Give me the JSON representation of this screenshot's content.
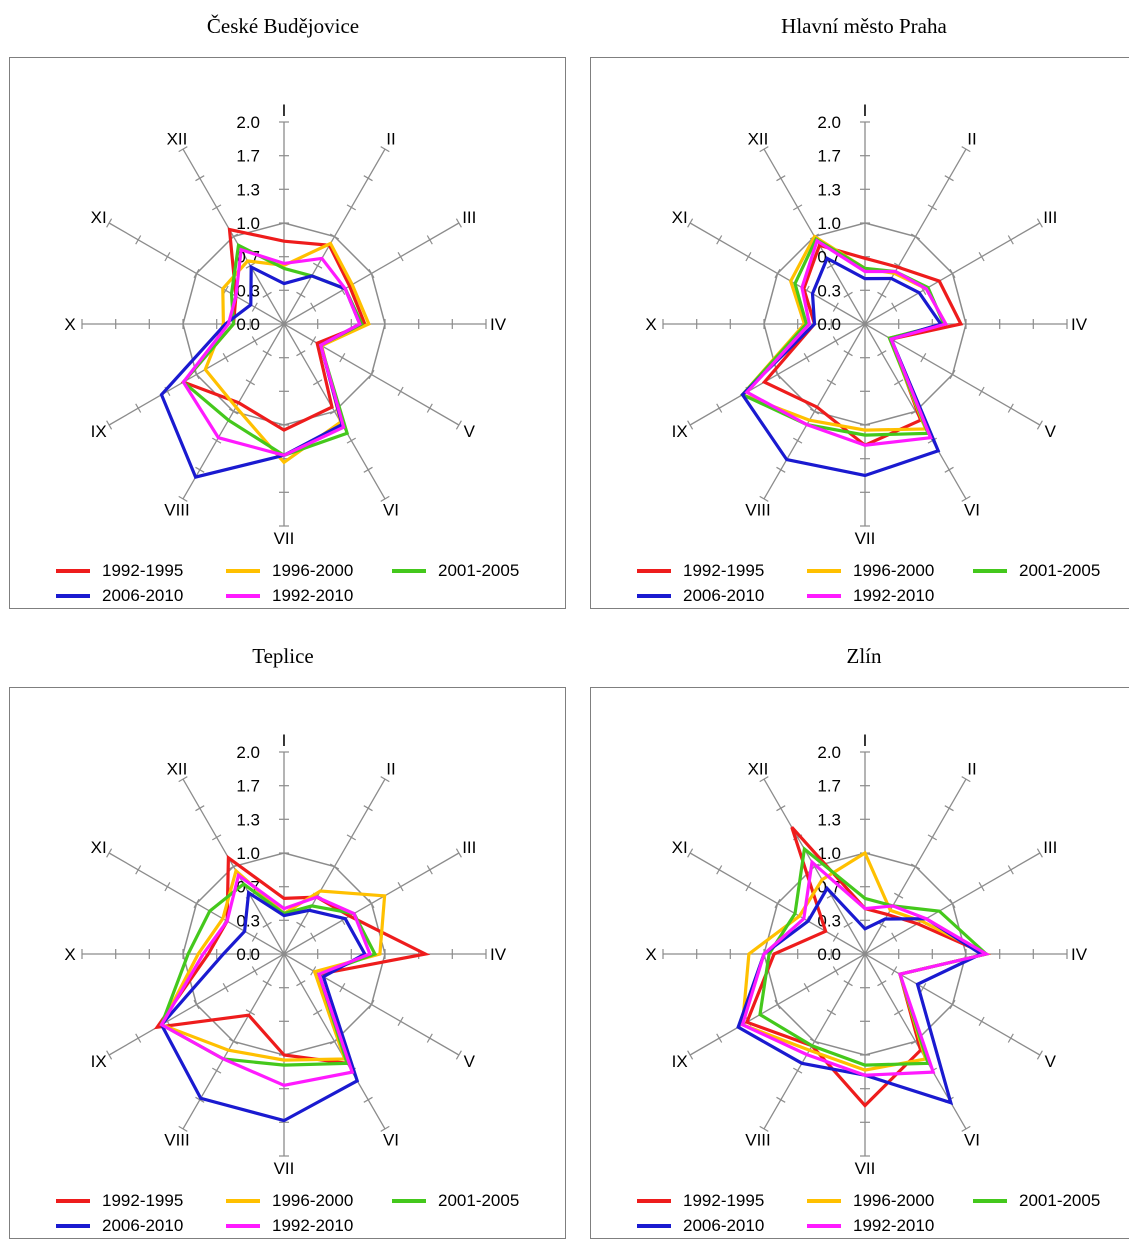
{
  "colors": {
    "1992-1995": "#ee1c1c",
    "1996-2000": "#ffc000",
    "2001-2005": "#44c81c",
    "2006-2010": "#1a1ad0",
    "1992-2010": "#ff1aff",
    "grid": "#8c8c8c"
  },
  "chart_data": [
    {
      "type": "radar",
      "title": "České Budějovice",
      "categories": [
        "I",
        "II",
        "III",
        "IV",
        "V",
        "VI",
        "VII",
        "VIII",
        "IX",
        "X",
        "XI",
        "XII"
      ],
      "ticks": [
        "0.0",
        "0.3",
        "0.7",
        "1.0",
        "1.3",
        "1.7",
        "2.0"
      ],
      "rlim": [
        0,
        2.0
      ],
      "legend": "bottom",
      "series": [
        {
          "name": "1992-1995",
          "values": [
            0.82,
            0.9,
            0.75,
            0.8,
            0.38,
            0.95,
            1.05,
            0.9,
            1.15,
            0.5,
            0.55,
            1.08
          ]
        },
        {
          "name": "1996-2000",
          "values": [
            0.58,
            0.92,
            0.78,
            0.84,
            0.43,
            1.12,
            1.37,
            0.95,
            0.9,
            0.6,
            0.7,
            0.72
          ]
        },
        {
          "name": "2001-2005",
          "values": [
            0.55,
            0.55,
            0.7,
            0.77,
            0.42,
            1.25,
            1.3,
            1.1,
            1.15,
            0.5,
            0.6,
            0.9
          ]
        },
        {
          "name": "2006-2010",
          "values": [
            0.4,
            0.55,
            0.7,
            0.75,
            0.42,
            1.15,
            1.3,
            1.75,
            1.4,
            0.58,
            0.38,
            0.65
          ]
        },
        {
          "name": "1992-2010",
          "values": [
            0.6,
            0.75,
            0.7,
            0.75,
            0.42,
            1.18,
            1.3,
            1.3,
            1.15,
            0.55,
            0.55,
            0.85
          ]
        }
      ]
    },
    {
      "type": "radar",
      "title": "Hlavní město Praha",
      "categories": [
        "I",
        "II",
        "III",
        "IV",
        "V",
        "VI",
        "VII",
        "VIII",
        "IX",
        "X",
        "XI",
        "XII"
      ],
      "ticks": [
        "0.0",
        "0.3",
        "0.7",
        "1.0",
        "1.3",
        "1.7",
        "2.0"
      ],
      "rlim": [
        0,
        2.0
      ],
      "legend": "bottom",
      "series": [
        {
          "name": "1992-1995",
          "values": [
            0.65,
            0.65,
            0.85,
            0.95,
            0.3,
            1.1,
            1.2,
            0.95,
            1.15,
            0.5,
            0.7,
            0.9
          ]
        },
        {
          "name": "1996-2000",
          "values": [
            0.55,
            0.58,
            0.7,
            0.8,
            0.28,
            1.2,
            1.05,
            1.1,
            1.4,
            0.6,
            0.85,
            1.0
          ]
        },
        {
          "name": "2001-2005",
          "values": [
            0.55,
            0.6,
            0.72,
            0.78,
            0.28,
            1.25,
            1.1,
            1.15,
            1.4,
            0.58,
            0.8,
            0.97
          ]
        },
        {
          "name": "2006-2010",
          "values": [
            0.45,
            0.52,
            0.62,
            0.75,
            0.3,
            1.45,
            1.5,
            1.55,
            1.4,
            0.5,
            0.6,
            0.75
          ]
        },
        {
          "name": "1992-2010",
          "values": [
            0.52,
            0.6,
            0.7,
            0.8,
            0.3,
            1.3,
            1.2,
            1.15,
            1.35,
            0.55,
            0.72,
            0.95
          ]
        }
      ]
    },
    {
      "type": "radar",
      "title": "Teplice",
      "categories": [
        "I",
        "II",
        "III",
        "IV",
        "V",
        "VI",
        "VII",
        "VIII",
        "IX",
        "X",
        "XI",
        "XII"
      ],
      "ticks": [
        "0.0",
        "0.3",
        "0.7",
        "1.0",
        "1.3",
        "1.7",
        "2.0"
      ],
      "rlim": [
        0,
        2.0
      ],
      "legend": "bottom",
      "series": [
        {
          "name": "1992-1995",
          "values": [
            0.55,
            0.65,
            0.75,
            1.4,
            0.4,
            1.25,
            1.0,
            0.7,
            1.45,
            0.75,
            0.65,
            1.1
          ]
        },
        {
          "name": "1996-2000",
          "values": [
            0.4,
            0.72,
            1.15,
            0.95,
            0.35,
            1.2,
            1.05,
            1.1,
            1.4,
            0.85,
            0.7,
            0.95
          ]
        },
        {
          "name": "2001-2005",
          "values": [
            0.4,
            0.55,
            0.8,
            0.9,
            0.4,
            1.25,
            1.1,
            1.2,
            1.4,
            0.95,
            0.85,
            0.8
          ]
        },
        {
          "name": "2006-2010",
          "values": [
            0.38,
            0.5,
            0.7,
            0.8,
            0.45,
            1.45,
            1.65,
            1.65,
            1.4,
            0.6,
            0.45,
            0.7
          ]
        },
        {
          "name": "1992-2010",
          "values": [
            0.45,
            0.65,
            0.8,
            0.85,
            0.4,
            1.35,
            1.3,
            1.2,
            1.4,
            0.8,
            0.65,
            0.9
          ]
        }
      ]
    },
    {
      "type": "radar",
      "title": "Zlín",
      "categories": [
        "I",
        "II",
        "III",
        "IV",
        "V",
        "VI",
        "VII",
        "VIII",
        "IX",
        "X",
        "XI",
        "XII"
      ],
      "ticks": [
        "0.0",
        "0.3",
        "0.7",
        "1.0",
        "1.3",
        "1.7",
        "2.0"
      ],
      "rlim": [
        0,
        2.0
      ],
      "legend": "bottom",
      "series": [
        {
          "name": "1992-1995",
          "values": [
            0.45,
            0.45,
            0.6,
            1.2,
            0.4,
            1.1,
            1.5,
            1.05,
            1.35,
            0.9,
            0.45,
            1.45
          ]
        },
        {
          "name": "1996-2000",
          "values": [
            1.0,
            0.5,
            0.65,
            1.2,
            0.4,
            1.2,
            1.15,
            1.1,
            1.4,
            1.15,
            0.75,
            0.85
          ]
        },
        {
          "name": "2001-2005",
          "values": [
            0.55,
            0.55,
            0.85,
            1.2,
            0.4,
            1.25,
            1.1,
            1.05,
            1.2,
            0.95,
            0.8,
            1.2
          ]
        },
        {
          "name": "2006-2010",
          "values": [
            0.25,
            0.4,
            0.7,
            1.15,
            0.6,
            1.7,
            1.2,
            1.25,
            1.45,
            1.0,
            0.65,
            0.75
          ]
        },
        {
          "name": "1992-2010",
          "values": [
            0.45,
            0.55,
            0.7,
            1.2,
            0.4,
            1.35,
            1.2,
            1.15,
            1.4,
            1.0,
            0.7,
            1.05
          ]
        }
      ]
    }
  ],
  "legend_labels": [
    "1992-1995",
    "1996-2000",
    "2001-2005",
    "2006-2010",
    "1992-2010"
  ]
}
